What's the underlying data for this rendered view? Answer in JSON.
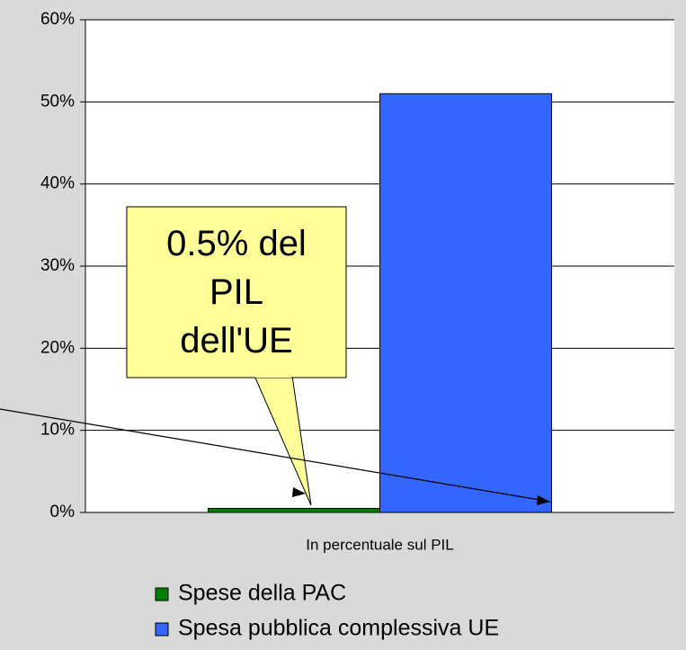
{
  "chart_data": {
    "type": "bar",
    "categories": [
      "In percentuale sul PIL"
    ],
    "series": [
      {
        "name": "Spese della PAC",
        "color": "#008000",
        "values": [
          0.5
        ]
      },
      {
        "name": "Spesa pubblica complessiva UE",
        "color": "#3366ff",
        "values": [
          51
        ]
      }
    ],
    "ylim": [
      0,
      60
    ],
    "yticks": [
      {
        "value": 0,
        "label": "0%"
      },
      {
        "value": 10,
        "label": "10%"
      },
      {
        "value": 20,
        "label": "20%"
      },
      {
        "value": 30,
        "label": "30%"
      },
      {
        "value": 40,
        "label": "40%"
      },
      {
        "value": 50,
        "label": "50%"
      },
      {
        "value": 60,
        "label": "60%"
      }
    ],
    "grid": true,
    "annotation": "0.5% del PIL dell'UE"
  }
}
